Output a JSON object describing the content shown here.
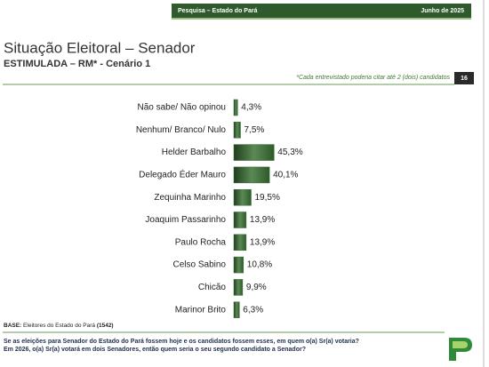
{
  "header": {
    "survey": "Pesquisa – Estado do Pará",
    "date": "Junho de 2025"
  },
  "chart_data": {
    "type": "bar",
    "orientation": "horizontal",
    "title": "Situação Eleitoral – Senador",
    "subtitle": "ESTIMULADA – RM* - Cenário 1",
    "note": "*Cada entrevistado poderia citar até 2 (dois) candidatos",
    "page_number": "16",
    "color": "#3f6b3a",
    "categories": [
      "Não sabe/ Não opinou",
      "Nenhum/ Branco/ Nulo",
      "Helder Barbalho",
      "Delegado Éder Mauro",
      "Zequinha Marinho",
      "Joaquim Passarinho",
      "Paulo Rocha",
      "Celso Sabino",
      "Chicão",
      "Marinor Brito"
    ],
    "values": [
      4.3,
      7.5,
      45.3,
      40.1,
      19.5,
      13.9,
      13.9,
      10.8,
      9.9,
      6.3
    ],
    "value_labels": [
      "4,3%",
      "7,5%",
      "45,3%",
      "40,1%",
      "19,5%",
      "13,9%",
      "13,9%",
      "10,8%",
      "9,9%",
      "6,3%"
    ]
  },
  "footer": {
    "base_label": "BASE:",
    "base_text": "Eleitores do Estado do Pará",
    "base_count": "(1542)",
    "question": [
      "Se as eleições para Senador do Estado do Pará fossem hoje e os candidatos fossem esses, em quem o(a) Sr(a) votaria?",
      "Em 2026, o(a) Sr(a) votará em dois Senadores, então quem seria o seu segundo candidato a Senador?"
    ]
  }
}
